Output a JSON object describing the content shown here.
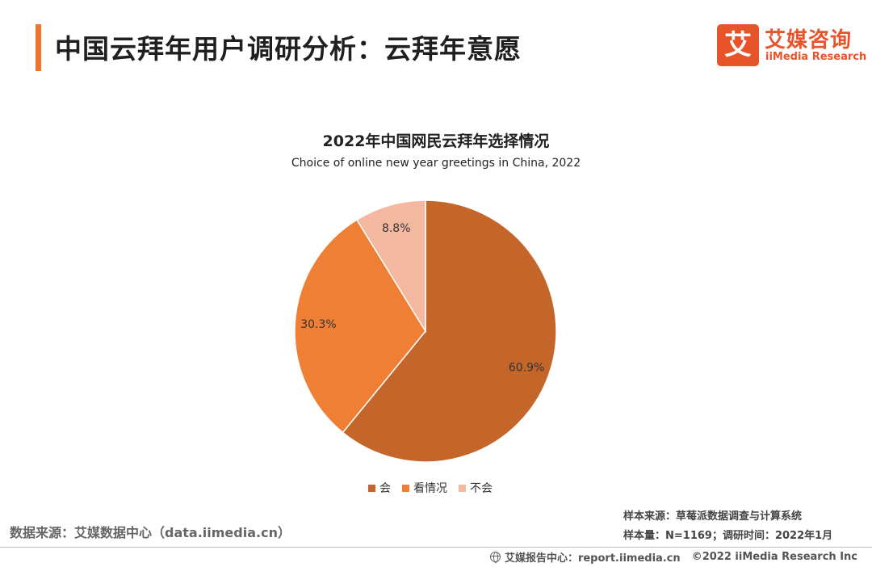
{
  "header": {
    "title": "中国云拜年用户调研分析：云拜年意愿",
    "logo_glyph": "艾",
    "logo_cn": "艾媒咨询",
    "logo_en": "iiMedia Research",
    "accent_color": "#f0762f"
  },
  "chart_data": {
    "type": "pie",
    "title": "2022年中国网民云拜年选择情况",
    "subtitle": "Choice of online new year greetings in China, 2022",
    "slices": [
      {
        "name": "会",
        "value": 60.9,
        "label": "60.9%",
        "color": "#c4652a"
      },
      {
        "name": "看情况",
        "value": 30.3,
        "label": "30.3%",
        "color": "#ee7f35"
      },
      {
        "name": "不会",
        "value": 8.8,
        "label": "8.8%",
        "color": "#f4b8a1"
      }
    ],
    "start_angle_deg": 0,
    "direction": "clockwise",
    "legend_position": "bottom"
  },
  "source": {
    "data_source": "数据来源：艾媒数据中心（data.iimedia.cn）",
    "sample_source": "样本来源：草莓派数据调查与计算系统",
    "sample_size": "样本量：N=1169；调研时间：2022年1月"
  },
  "footer": {
    "report_center": "艾媒报告中心：report.iimedia.cn",
    "copyright": "©2022 iiMedia Research Inc",
    "icon": "globe-icon"
  }
}
